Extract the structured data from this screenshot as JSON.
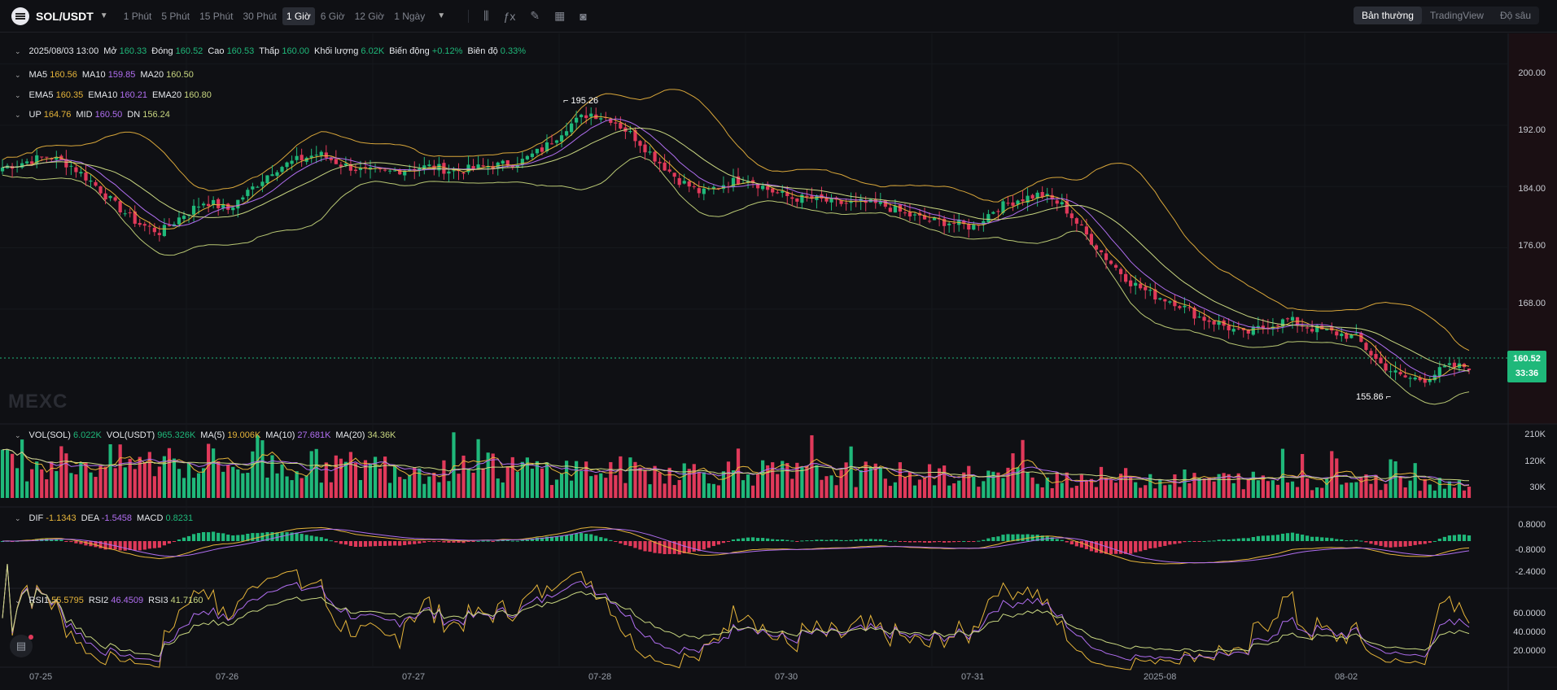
{
  "header": {
    "pair": "SOL/USDT",
    "timeframes": [
      "1 Phút",
      "5 Phút",
      "15 Phút",
      "30 Phút",
      "1 Giờ",
      "6 Giờ",
      "12 Giờ",
      "1 Ngày"
    ],
    "active_timeframe_index": 4,
    "views": [
      "Bản thường",
      "TradingView",
      "Độ sâu"
    ],
    "active_view_index": 0
  },
  "ohlc": {
    "date": "2025/08/03 13:00",
    "open_label": "Mở",
    "open": "160.33",
    "close_label": "Đóng",
    "close": "160.52",
    "high_label": "Cao",
    "high": "160.53",
    "low_label": "Thấp",
    "low": "160.00",
    "volume_label": "Khối lượng",
    "volume": "6.02K",
    "change_label": "Biến động",
    "change": "+0.12%",
    "amplitude_label": "Biên độ",
    "amplitude": "0.33%"
  },
  "ma": {
    "ma5_label": "MA5",
    "ma5": "160.56",
    "ma10_label": "MA10",
    "ma10": "159.85",
    "ma20_label": "MA20",
    "ma20": "160.50"
  },
  "ema": {
    "ema5_label": "EMA5",
    "ema5": "160.35",
    "ema10_label": "EMA10",
    "ema10": "160.21",
    "ema20_label": "EMA20",
    "ema20": "160.80"
  },
  "boll": {
    "up_label": "UP",
    "up": "164.76",
    "mid_label": "MID",
    "mid": "160.50",
    "dn_label": "DN",
    "dn": "156.24"
  },
  "vol": {
    "sol_label": "VOL(SOL)",
    "sol": "6.022K",
    "usdt_label": "VOL(USDT)",
    "usdt": "965.326K",
    "ma5_label": "MA(5)",
    "ma5": "19.006K",
    "ma10_label": "MA(10)",
    "ma10": "27.681K",
    "ma20_label": "MA(20)",
    "ma20": "34.36K"
  },
  "macd": {
    "dif_label": "DIF",
    "dif": "-1.1343",
    "dea_label": "DEA",
    "dea": "-1.5458",
    "macd_label": "MACD",
    "macd": "0.8231"
  },
  "rsi": {
    "rsi1_label": "RSI1",
    "rsi1": "55.5795",
    "rsi2_label": "RSI2",
    "rsi2": "46.4509",
    "rsi3_label": "RSI3",
    "rsi3": "41.7160"
  },
  "price_axis": [
    "200.00",
    "192.00",
    "184.00",
    "176.00",
    "168.00"
  ],
  "vol_axis": [
    "210K",
    "120K",
    "30K"
  ],
  "macd_axis": [
    "0.8000",
    "-0.8000",
    "-2.4000"
  ],
  "rsi_axis": [
    "60.0000",
    "40.0000",
    "20.0000"
  ],
  "x_labels": [
    "07-25",
    "07-26",
    "07-27",
    "07-28",
    "07-30",
    "07-31",
    "2025-08",
    "08-02"
  ],
  "current_price": "160.52",
  "countdown": "33:36",
  "high_mark": "195.26",
  "low_mark": "155.86",
  "watermark": "MEXC",
  "colors": {
    "up": "#1fb87a",
    "down": "#e0395a",
    "ma5": "#e5b43a",
    "ma10": "#b06ef0",
    "ma20": "#c8d680"
  },
  "chart_data": {
    "type": "candlestick",
    "y_range": [
      153,
      204
    ],
    "close_series": [
      186.5,
      187.2,
      188.0,
      186.8,
      184.5,
      181.6,
      179.2,
      178.0,
      180.3,
      182.1,
      181.0,
      183.6,
      186.2,
      187.4,
      188.3,
      186.9,
      186.0,
      185.8,
      186.4,
      186.6,
      186.0,
      186.4,
      186.8,
      187.3,
      189.0,
      191.8,
      193.6,
      192.8,
      190.5,
      187.5,
      184.8,
      183.1,
      184.4,
      185.1,
      183.5,
      182.5,
      182.4,
      181.8,
      181.9,
      181.6,
      180.4,
      179.6,
      179.3,
      178.7,
      181.1,
      182.3,
      183.0,
      181.5,
      177.8,
      174.4,
      171.5,
      169.8,
      168.9,
      167.0,
      166.0,
      164.7,
      165.8,
      166.6,
      165.5,
      164.9,
      164.3,
      161.0,
      159.1,
      158.8,
      160.4,
      160.52
    ]
  }
}
